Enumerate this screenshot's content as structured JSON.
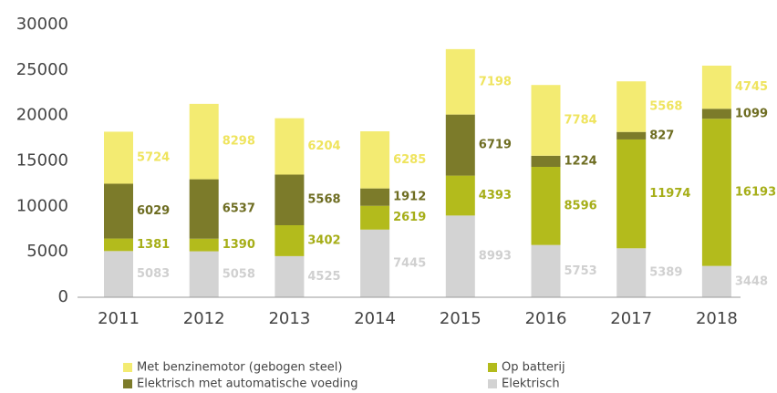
{
  "chart_data": {
    "type": "stacked_bar",
    "categories": [
      "2011",
      "2012",
      "2013",
      "2014",
      "2015",
      "2016",
      "2017",
      "2018"
    ],
    "series": [
      {
        "name": "Elektrisch",
        "color": "#d3d3d3",
        "label_color": "#d0d0d0",
        "values": [
          5083,
          5058,
          4525,
          7445,
          8993,
          5753,
          5389,
          3448
        ]
      },
      {
        "name": "Op batterij",
        "color": "#b3bb1c",
        "label_color": "#a6ae18",
        "values": [
          1381,
          1390,
          3402,
          2619,
          4393,
          8596,
          11974,
          16193
        ]
      },
      {
        "name": "Elektrisch met automatische voeding",
        "color": "#7c7b2a",
        "label_color": "#6e6d22",
        "values": [
          6029,
          6537,
          5568,
          1912,
          6719,
          1224,
          827,
          1099
        ]
      },
      {
        "name": "Met benzinemotor (gebogen steel)",
        "color": "#f3eb72",
        "label_color": "#efe45e",
        "values": [
          5724,
          8298,
          6204,
          6285,
          7198,
          7784,
          5568,
          4745
        ]
      }
    ],
    "ylim": [
      0,
      30000
    ],
    "yticks": [
      0,
      5000,
      10000,
      15000,
      20000,
      25000,
      30000
    ],
    "grid": false
  }
}
